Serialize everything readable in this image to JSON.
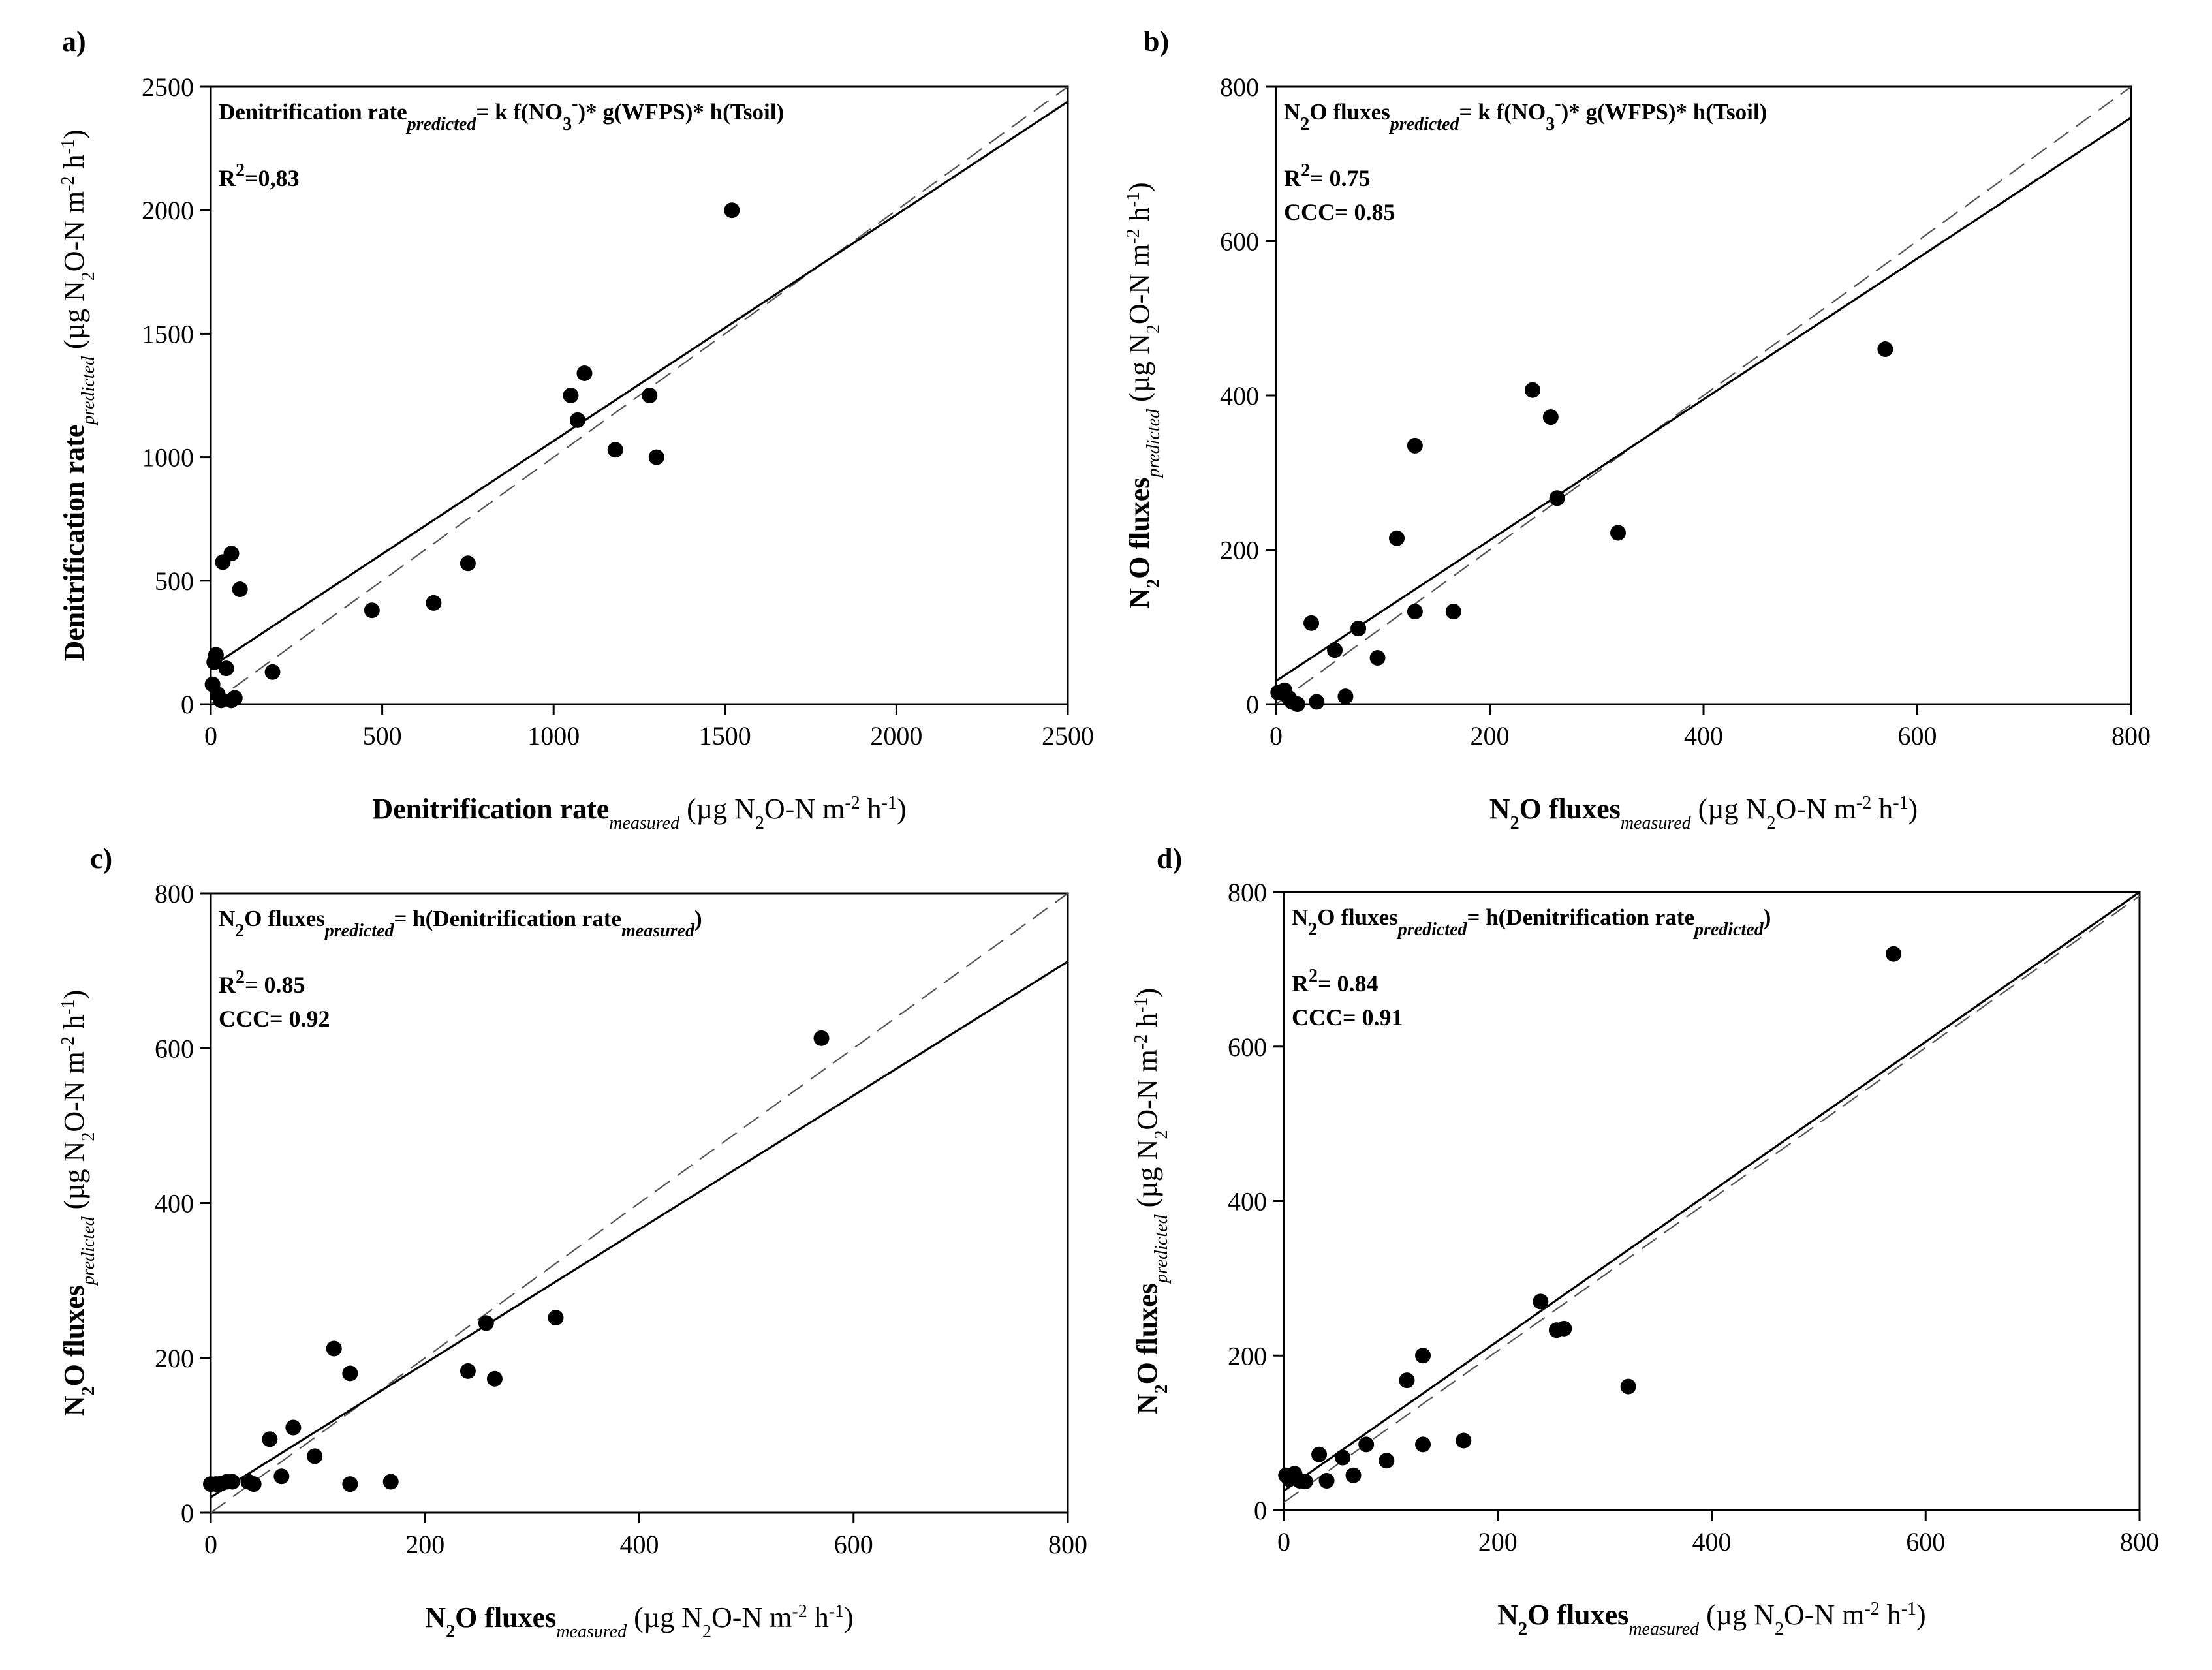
{
  "figure_title": "",
  "chart_data": [
    {
      "id": "a",
      "type": "scatter",
      "panel_label": "a)",
      "equation": {
        "prefix": "Denitrification rate",
        "prefix_sub": "predicted",
        "rest": "= k f(NO",
        "no3_sub": "3",
        "no3_sup": "-",
        "tail": ")* g(WFPS)* h(Tsoil)"
      },
      "stats": [
        {
          "label": "R",
          "sup": "2",
          "value": "=0,83"
        }
      ],
      "xlim": [
        0,
        2500
      ],
      "ylim": [
        0,
        2500
      ],
      "xticks": [
        0,
        500,
        1000,
        1500,
        2000,
        2500
      ],
      "yticks": [
        0,
        500,
        1000,
        1500,
        2000,
        2500
      ],
      "xlabel": {
        "main": "Denitrification rate",
        "sub": "measured",
        "units": "(µg N2O-N m-2 h-1)"
      },
      "ylabel": {
        "main": "Denitrification rate",
        "sub": "predicted",
        "units": "(µg N2O-N m-2 h-1)"
      },
      "points": [
        [
          1520,
          2000
        ],
        [
          1090,
          1340
        ],
        [
          1050,
          1250
        ],
        [
          1280,
          1250
        ],
        [
          1070,
          1150
        ],
        [
          1180,
          1030
        ],
        [
          1300,
          1000
        ],
        [
          750,
          570
        ],
        [
          650,
          410
        ],
        [
          470,
          380
        ],
        [
          60,
          610
        ],
        [
          35,
          575
        ],
        [
          85,
          465
        ],
        [
          180,
          130
        ],
        [
          15,
          200
        ],
        [
          10,
          170
        ],
        [
          45,
          145
        ],
        [
          5,
          80
        ],
        [
          20,
          40
        ],
        [
          30,
          15
        ],
        [
          60,
          15
        ],
        [
          70,
          25
        ]
      ],
      "fit_line": [
        [
          0,
          150
        ],
        [
          2500,
          2440
        ]
      ],
      "identity_line": [
        [
          0,
          0
        ],
        [
          2500,
          2500
        ]
      ]
    },
    {
      "id": "b",
      "type": "scatter",
      "panel_label": "b)",
      "equation": {
        "prefix": "N2O fluxes",
        "prefix_sub": "predicted",
        "rest": "= k f(NO",
        "no3_sub": "3",
        "no3_sup": "-",
        "tail": ")* g(WFPS)* h(Tsoil)"
      },
      "stats": [
        {
          "label": "R",
          "sup": "2",
          "value": "= 0.75"
        },
        {
          "label": "CCC= 0.85",
          "sup": "",
          "value": ""
        }
      ],
      "xlim": [
        0,
        800
      ],
      "ylim": [
        0,
        800
      ],
      "xticks": [
        0,
        200,
        400,
        600,
        800
      ],
      "yticks": [
        0,
        200,
        400,
        600,
        800
      ],
      "xlabel": {
        "main": "N2O fluxes",
        "sub": "measured",
        "units": "(µg N2O-N m-2 h-1)"
      },
      "ylabel": {
        "main": "N2O fluxes",
        "sub": "predicted",
        "units": "(µg N2O-N m-2 h-1)"
      },
      "points": [
        [
          570,
          460
        ],
        [
          240,
          407
        ],
        [
          257,
          372
        ],
        [
          130,
          335
        ],
        [
          263,
          267
        ],
        [
          320,
          222
        ],
        [
          113,
          215
        ],
        [
          33,
          105
        ],
        [
          77,
          98
        ],
        [
          130,
          120
        ],
        [
          166,
          120
        ],
        [
          55,
          70
        ],
        [
          95,
          60
        ],
        [
          65,
          10
        ],
        [
          38,
          3
        ],
        [
          2,
          15
        ],
        [
          8,
          18
        ],
        [
          12,
          8
        ],
        [
          15,
          3
        ],
        [
          20,
          0
        ]
      ],
      "fit_line": [
        [
          0,
          30
        ],
        [
          800,
          760
        ]
      ],
      "identity_line": [
        [
          0,
          0
        ],
        [
          800,
          800
        ]
      ]
    },
    {
      "id": "c",
      "type": "scatter",
      "panel_label": "c)",
      "equation": {
        "prefix": "N2O fluxes",
        "prefix_sub": "predicted",
        "rest": "= h(Denitrification rate",
        "tail_sub": "measured",
        "tail": ")"
      },
      "stats": [
        {
          "label": "R",
          "sup": "2",
          "value": "= 0.85"
        },
        {
          "label": "CCC= 0.92",
          "sup": "",
          "value": ""
        }
      ],
      "xlim": [
        0,
        800
      ],
      "ylim": [
        0,
        800
      ],
      "xticks": [
        0,
        200,
        400,
        600,
        800
      ],
      "yticks": [
        0,
        200,
        400,
        600,
        800
      ],
      "xlabel": {
        "main": "N2O fluxes",
        "sub": "measured",
        "units": "(µg N2O-N m-2 h-1)"
      },
      "ylabel": {
        "main": "N2O fluxes",
        "sub": "predicted",
        "units": "(µg N2O-N m-2 h-1)"
      },
      "points": [
        [
          570,
          613
        ],
        [
          322,
          252
        ],
        [
          257,
          245
        ],
        [
          115,
          212
        ],
        [
          240,
          183
        ],
        [
          130,
          180
        ],
        [
          265,
          173
        ],
        [
          77,
          110
        ],
        [
          55,
          95
        ],
        [
          97,
          73
        ],
        [
          66,
          47
        ],
        [
          35,
          40
        ],
        [
          40,
          37
        ],
        [
          130,
          37
        ],
        [
          168,
          40
        ],
        [
          0,
          37
        ],
        [
          5,
          37
        ],
        [
          10,
          38
        ],
        [
          15,
          40
        ],
        [
          20,
          40
        ]
      ],
      "fit_line": [
        [
          0,
          20
        ],
        [
          800,
          712
        ]
      ],
      "identity_line": [
        [
          0,
          0
        ],
        [
          800,
          800
        ]
      ]
    },
    {
      "id": "d",
      "type": "scatter",
      "panel_label": "d)",
      "equation": {
        "prefix": "N2O fluxes",
        "prefix_sub": "predicted",
        "rest": "= h(Denitrification rate",
        "tail_sub": "predicted",
        "tail": ")"
      },
      "stats": [
        {
          "label": "R",
          "sup": "2",
          "value": "= 0.84"
        },
        {
          "label": "CCC= 0.91",
          "sup": "",
          "value": ""
        }
      ],
      "xlim": [
        0,
        800
      ],
      "ylim": [
        0,
        800
      ],
      "xticks": [
        0,
        200,
        400,
        600,
        800
      ],
      "yticks": [
        0,
        200,
        400,
        600,
        800
      ],
      "xlabel": {
        "main": "N2O fluxes",
        "sub": "measured",
        "units": "(µg N2O-N m-2 h-1)"
      },
      "ylabel": {
        "main": "N2O fluxes",
        "sub": "predicted",
        "units": "(µg N2O-N m-2 h-1)"
      },
      "points": [
        [
          570,
          720
        ],
        [
          240,
          270
        ],
        [
          130,
          200
        ],
        [
          262,
          235
        ],
        [
          255,
          233
        ],
        [
          115,
          168
        ],
        [
          322,
          160
        ],
        [
          77,
          85
        ],
        [
          130,
          85
        ],
        [
          168,
          90
        ],
        [
          55,
          68
        ],
        [
          33,
          72
        ],
        [
          96,
          64
        ],
        [
          65,
          45
        ],
        [
          40,
          38
        ],
        [
          2,
          45
        ],
        [
          5,
          40
        ],
        [
          10,
          47
        ],
        [
          15,
          38
        ],
        [
          20,
          37
        ]
      ],
      "fit_line": [
        [
          0,
          25
        ],
        [
          800,
          800
        ]
      ],
      "identity_line": [
        [
          0,
          10
        ],
        [
          800,
          795
        ]
      ]
    }
  ]
}
